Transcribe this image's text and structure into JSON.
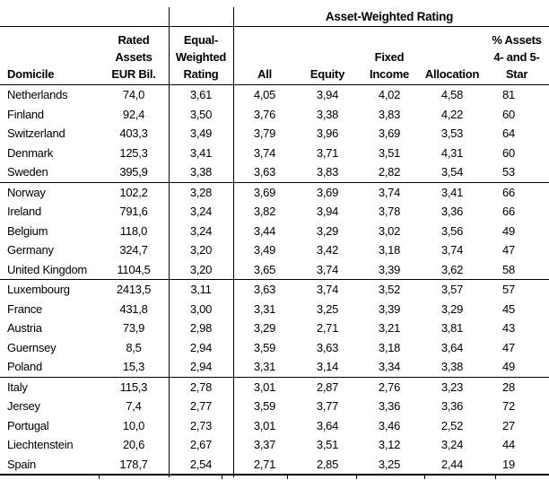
{
  "spanner_title": "Asset-Weighted Rating",
  "columns": {
    "domicile": "Domicile",
    "rated_assets": "Rated\nAssets\nEUR Bil.",
    "equal_weighted": "Equal-\nWeighted\nRating",
    "all": "All",
    "equity": "Equity",
    "fixed_income": "Fixed\nIncome",
    "allocation": "Allocation",
    "pct_assets_45_star": "% Assets\n4- and 5-\nStar"
  },
  "groups": [
    [
      [
        "Netherlands",
        "74,0",
        "3,61",
        "4,05",
        "3,94",
        "4,02",
        "4,58",
        "81"
      ],
      [
        "Finland",
        "92,4",
        "3,50",
        "3,76",
        "3,38",
        "3,83",
        "4,22",
        "60"
      ],
      [
        "Switzerland",
        "403,3",
        "3,49",
        "3,79",
        "3,96",
        "3,69",
        "3,53",
        "64"
      ],
      [
        "Denmark",
        "125,3",
        "3,41",
        "3,74",
        "3,71",
        "3,51",
        "4,31",
        "60"
      ],
      [
        "Sweden",
        "395,9",
        "3,38",
        "3,63",
        "3,83",
        "2,82",
        "3,54",
        "53"
      ]
    ],
    [
      [
        "Norway",
        "102,2",
        "3,28",
        "3,69",
        "3,69",
        "3,74",
        "3,41",
        "66"
      ],
      [
        "Ireland",
        "791,6",
        "3,24",
        "3,82",
        "3,94",
        "3,78",
        "3,36",
        "66"
      ],
      [
        "Belgium",
        "118,0",
        "3,24",
        "3,44",
        "3,29",
        "3,02",
        "3,56",
        "49"
      ],
      [
        "Germany",
        "324,7",
        "3,20",
        "3,49",
        "3,42",
        "3,18",
        "3,74",
        "47"
      ],
      [
        "United Kingdom",
        "1104,5",
        "3,20",
        "3,65",
        "3,74",
        "3,39",
        "3,62",
        "58"
      ]
    ],
    [
      [
        "Luxembourg",
        "2413,5",
        "3,11",
        "3,63",
        "3,74",
        "3,52",
        "3,57",
        "57"
      ],
      [
        "France",
        "431,8",
        "3,00",
        "3,31",
        "3,25",
        "3,39",
        "3,29",
        "45"
      ],
      [
        "Austria",
        "73,9",
        "2,98",
        "3,29",
        "2,71",
        "3,21",
        "3,81",
        "43"
      ],
      [
        "Guernsey",
        "8,5",
        "2,94",
        "3,59",
        "3,63",
        "3,18",
        "3,64",
        "47"
      ],
      [
        "Poland",
        "15,3",
        "2,94",
        "3,31",
        "3,14",
        "3,34",
        "3,38",
        "49"
      ]
    ],
    [
      [
        "Italy",
        "115,3",
        "2,78",
        "3,01",
        "2,87",
        "2,76",
        "3,23",
        "28"
      ],
      [
        "Jersey",
        "7,4",
        "2,77",
        "3,59",
        "3,77",
        "3,36",
        "3,36",
        "72"
      ],
      [
        "Portugal",
        "10,0",
        "2,73",
        "3,01",
        "3,64",
        "3,46",
        "2,52",
        "27"
      ],
      [
        "Liechtenstein",
        "20,6",
        "2,67",
        "3,37",
        "3,51",
        "3,12",
        "3,24",
        "44"
      ],
      [
        "Spain",
        "178,7",
        "2,54",
        "2,71",
        "2,85",
        "3,25",
        "2,44",
        "19"
      ]
    ]
  ],
  "colors": {
    "text": "#000000",
    "rule": "#000000",
    "background": "#ffffff"
  },
  "layout_ticks_x": [
    110,
    247,
    320,
    397,
    473,
    552
  ]
}
